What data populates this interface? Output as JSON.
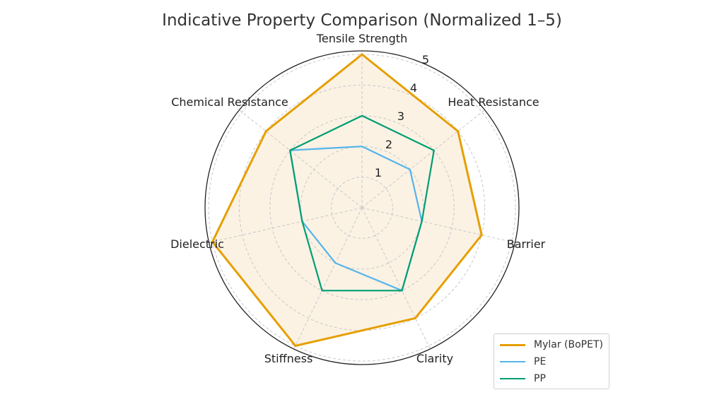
{
  "chart_data": {
    "type": "radar",
    "title": "Indicative Property Comparison (Normalized 1–5)",
    "categories": [
      "Tensile Strength",
      "Heat Resistance",
      "Barrier",
      "Clarity",
      "Stiffness",
      "Dielectric",
      "Chemical Resistance"
    ],
    "series": [
      {
        "name": "Mylar (BoPET)",
        "color": "#E69F00",
        "fill": "#FBF2E4",
        "values": [
          5,
          4,
          4,
          4,
          5,
          5,
          4
        ]
      },
      {
        "name": "PE",
        "color": "#56B4E9",
        "values": [
          2,
          2,
          2,
          3,
          2,
          2,
          3
        ]
      },
      {
        "name": "PP",
        "color": "#009E73",
        "values": [
          3,
          3,
          2,
          3,
          3,
          2,
          3
        ]
      }
    ],
    "radial_ticks": [
      1,
      2,
      3,
      4,
      5
    ],
    "rlim": [
      0,
      5
    ],
    "grid": true,
    "legend_position": "lower right"
  },
  "legend": {
    "items": [
      {
        "label": "Mylar (BoPET)",
        "color": "#E69F00"
      },
      {
        "label": "PE",
        "color": "#56B4E9"
      },
      {
        "label": "PP",
        "color": "#009E73"
      }
    ]
  }
}
